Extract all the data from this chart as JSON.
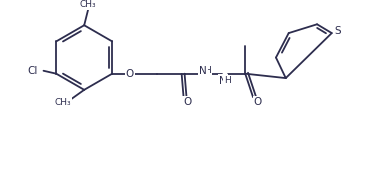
{
  "background_color": "#ffffff",
  "line_color": "#2d2d4e",
  "bond_lw": 1.3,
  "font_size": 7.5,
  "figsize": [
    3.68,
    1.73
  ],
  "dpi": 100,
  "xlim": [
    0,
    368
  ],
  "ylim": [
    0,
    173
  ]
}
